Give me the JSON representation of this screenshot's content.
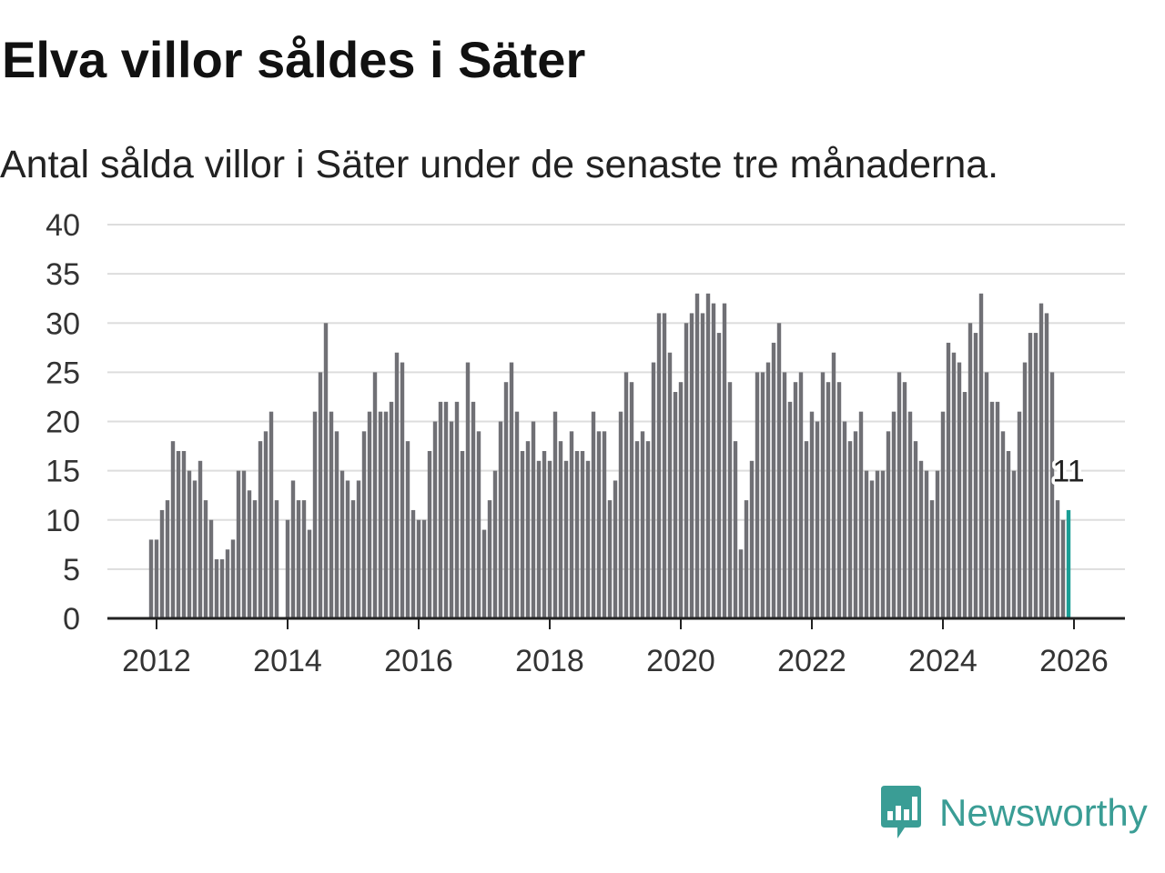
{
  "header": {
    "title": "Elva villor såldes i Säter",
    "subtitle": "Antal sålda villor i Säter under de senaste tre månaderna."
  },
  "logo": {
    "text": "Newsworthy",
    "color": "#3a9d95"
  },
  "colors": {
    "bar": "#707075",
    "highlight": "#1a9e95",
    "grid": "#dddddd",
    "axis": "#222222"
  },
  "chart_data": {
    "type": "bar",
    "title": "Elva villor såldes i Säter",
    "subtitle": "Antal sålda villor i Säter under de senaste tre månaderna.",
    "xlabel": "",
    "ylabel": "",
    "ylim": [
      0,
      40
    ],
    "yticks": [
      0,
      5,
      10,
      15,
      20,
      25,
      30,
      35,
      40
    ],
    "xticks": [
      "2012",
      "2014",
      "2016",
      "2018",
      "2020",
      "2022",
      "2024",
      "2026"
    ],
    "grid": true,
    "start": "2011-12",
    "frequency": "monthly",
    "values": [
      8,
      8,
      11,
      12,
      18,
      17,
      17,
      15,
      14,
      16,
      12,
      10,
      6,
      6,
      7,
      8,
      15,
      15,
      13,
      12,
      18,
      19,
      21,
      12,
      0,
      10,
      14,
      12,
      12,
      9,
      21,
      25,
      30,
      21,
      19,
      15,
      14,
      12,
      14,
      19,
      21,
      25,
      21,
      21,
      22,
      27,
      26,
      18,
      11,
      10,
      10,
      17,
      20,
      22,
      22,
      20,
      22,
      17,
      26,
      22,
      19,
      9,
      12,
      15,
      20,
      24,
      26,
      21,
      17,
      18,
      20,
      16,
      17,
      16,
      21,
      18,
      16,
      19,
      17,
      17,
      16,
      21,
      19,
      19,
      12,
      14,
      21,
      25,
      24,
      18,
      19,
      18,
      26,
      31,
      31,
      27,
      23,
      24,
      30,
      31,
      33,
      31,
      33,
      32,
      29,
      32,
      24,
      18,
      7,
      12,
      16,
      25,
      25,
      26,
      28,
      30,
      25,
      22,
      24,
      25,
      18,
      21,
      20,
      25,
      24,
      27,
      24,
      20,
      18,
      19,
      21,
      15,
      14,
      15,
      15,
      19,
      21,
      25,
      24,
      21,
      18,
      16,
      15,
      12,
      15,
      21,
      28,
      27,
      26,
      23,
      30,
      29,
      33,
      25,
      22,
      22,
      19,
      17,
      15,
      21,
      26,
      29,
      29,
      32,
      31,
      25,
      12,
      10,
      11
    ],
    "highlight": {
      "label": "11",
      "value": 11
    }
  }
}
